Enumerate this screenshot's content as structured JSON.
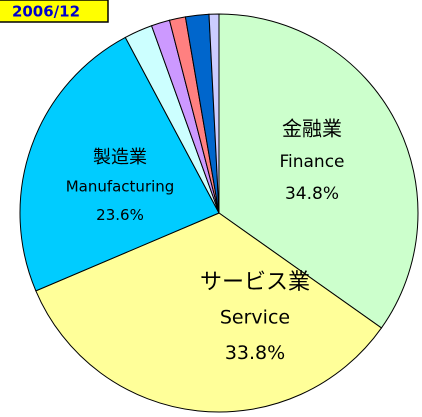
{
  "chart_data": {
    "type": "pie",
    "title": "2006/12",
    "categories": [
      "金融業",
      "サービス業",
      "製造業",
      null,
      null,
      null,
      null,
      null
    ],
    "categories_en": [
      "Finance",
      "Service",
      "Manufacturing",
      null,
      null,
      null,
      null,
      null
    ],
    "values": [
      34.8,
      33.8,
      23.6,
      2.3,
      1.5,
      1.3,
      1.9,
      0.8
    ],
    "value_labels": [
      "34.8%",
      "33.8%",
      "23.6%",
      null,
      null,
      null,
      null,
      null
    ],
    "colors": [
      "#ccffcc",
      "#ffff99",
      "#00ccff",
      "#ccffff",
      "#cc99ff",
      "#ff8080",
      "#0066cc",
      "#ccccff"
    ]
  }
}
